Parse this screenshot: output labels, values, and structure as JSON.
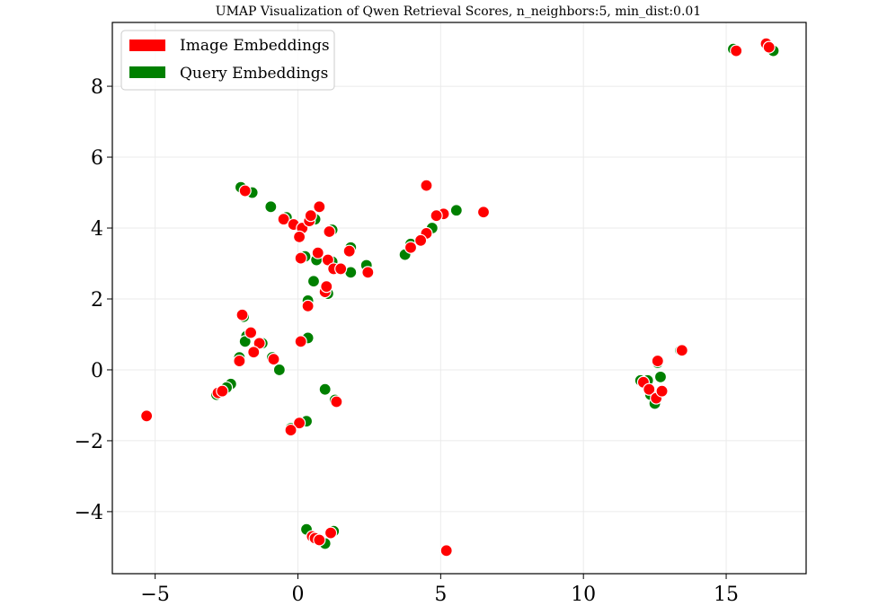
{
  "chart_data": {
    "type": "scatter",
    "title": "UMAP Visualization of Qwen Retrieval Scores, n_neighbors:5, min_dist:0.01",
    "xlabel": "",
    "ylabel": "",
    "xlim": [
      -6.5,
      17.8
    ],
    "ylim": [
      -5.75,
      9.8
    ],
    "xticks": [
      -5,
      0,
      5,
      10,
      15
    ],
    "yticks": [
      -4,
      -2,
      0,
      2,
      4,
      6,
      8
    ],
    "xtick_labels": [
      "−5",
      "0",
      "5",
      "10",
      "15"
    ],
    "ytick_labels": [
      "−4",
      "−2",
      "0",
      "2",
      "4",
      "6",
      "8"
    ],
    "grid": true,
    "legend_position": "top-left",
    "series": [
      {
        "name": "Image Embeddings",
        "color": "#ff0000",
        "points": [
          [
            -5.3,
            -1.3
          ],
          [
            5.2,
            -5.1
          ],
          [
            6.5,
            4.45
          ],
          [
            4.5,
            5.2
          ],
          [
            5.1,
            4.4
          ],
          [
            4.85,
            4.35
          ],
          [
            4.5,
            3.85
          ],
          [
            4.3,
            3.65
          ],
          [
            3.95,
            3.45
          ],
          [
            -1.85,
            5.05
          ],
          [
            -0.5,
            4.25
          ],
          [
            -0.15,
            4.1
          ],
          [
            0.15,
            4.0
          ],
          [
            0.05,
            3.75
          ],
          [
            0.4,
            4.2
          ],
          [
            0.45,
            4.35
          ],
          [
            0.75,
            4.6
          ],
          [
            1.1,
            3.9
          ],
          [
            0.1,
            3.15
          ],
          [
            0.7,
            3.3
          ],
          [
            1.05,
            3.1
          ],
          [
            1.25,
            2.85
          ],
          [
            1.5,
            2.85
          ],
          [
            1.8,
            3.35
          ],
          [
            2.45,
            2.75
          ],
          [
            0.95,
            2.2
          ],
          [
            1.0,
            2.35
          ],
          [
            0.35,
            1.8
          ],
          [
            -1.95,
            1.55
          ],
          [
            -1.65,
            1.05
          ],
          [
            -1.35,
            0.75
          ],
          [
            -1.55,
            0.5
          ],
          [
            -2.05,
            0.25
          ],
          [
            -0.85,
            0.3
          ],
          [
            0.1,
            0.8
          ],
          [
            -2.8,
            -0.65
          ],
          [
            -2.65,
            -0.6
          ],
          [
            0.05,
            -1.5
          ],
          [
            -0.25,
            -1.7
          ],
          [
            1.35,
            -0.9
          ],
          [
            0.5,
            -4.7
          ],
          [
            0.6,
            -4.75
          ],
          [
            0.75,
            -4.8
          ],
          [
            1.15,
            -4.6
          ],
          [
            12.1,
            -0.35
          ],
          [
            12.3,
            -0.55
          ],
          [
            12.55,
            -0.8
          ],
          [
            12.75,
            -0.6
          ],
          [
            12.6,
            0.25
          ],
          [
            13.45,
            0.55
          ],
          [
            15.35,
            9.0
          ],
          [
            16.4,
            9.2
          ],
          [
            16.5,
            9.1
          ]
        ]
      },
      {
        "name": "Query Embeddings",
        "color": "#008000",
        "points": [
          [
            5.55,
            4.5
          ],
          [
            4.7,
            4.0
          ],
          [
            3.75,
            3.25
          ],
          [
            3.95,
            3.55
          ],
          [
            -2.0,
            5.15
          ],
          [
            -1.6,
            5.0
          ],
          [
            -0.95,
            4.6
          ],
          [
            -0.4,
            4.3
          ],
          [
            0.6,
            4.25
          ],
          [
            1.2,
            3.95
          ],
          [
            0.25,
            3.2
          ],
          [
            0.65,
            3.1
          ],
          [
            1.2,
            3.05
          ],
          [
            1.85,
            3.45
          ],
          [
            1.85,
            2.75
          ],
          [
            2.4,
            2.95
          ],
          [
            0.55,
            2.5
          ],
          [
            1.05,
            2.15
          ],
          [
            0.35,
            1.95
          ],
          [
            -1.9,
            1.5
          ],
          [
            -1.8,
            0.95
          ],
          [
            -1.85,
            0.8
          ],
          [
            -1.25,
            0.75
          ],
          [
            -2.05,
            0.35
          ],
          [
            -0.9,
            0.35
          ],
          [
            -0.65,
            -0.0
          ],
          [
            0.35,
            0.9
          ],
          [
            -2.85,
            -0.7
          ],
          [
            -2.35,
            -0.4
          ],
          [
            -2.5,
            -0.5
          ],
          [
            0.95,
            -0.55
          ],
          [
            0.3,
            -1.45
          ],
          [
            -0.25,
            -1.65
          ],
          [
            1.3,
            -0.85
          ],
          [
            0.3,
            -4.5
          ],
          [
            0.95,
            -4.9
          ],
          [
            1.25,
            -4.55
          ],
          [
            12.0,
            -0.3
          ],
          [
            12.25,
            -0.3
          ],
          [
            12.35,
            -0.7
          ],
          [
            12.5,
            -0.95
          ],
          [
            12.7,
            -0.2
          ],
          [
            12.6,
            0.2
          ],
          [
            13.4,
            0.55
          ],
          [
            15.25,
            9.05
          ],
          [
            16.65,
            9.0
          ]
        ]
      }
    ]
  }
}
